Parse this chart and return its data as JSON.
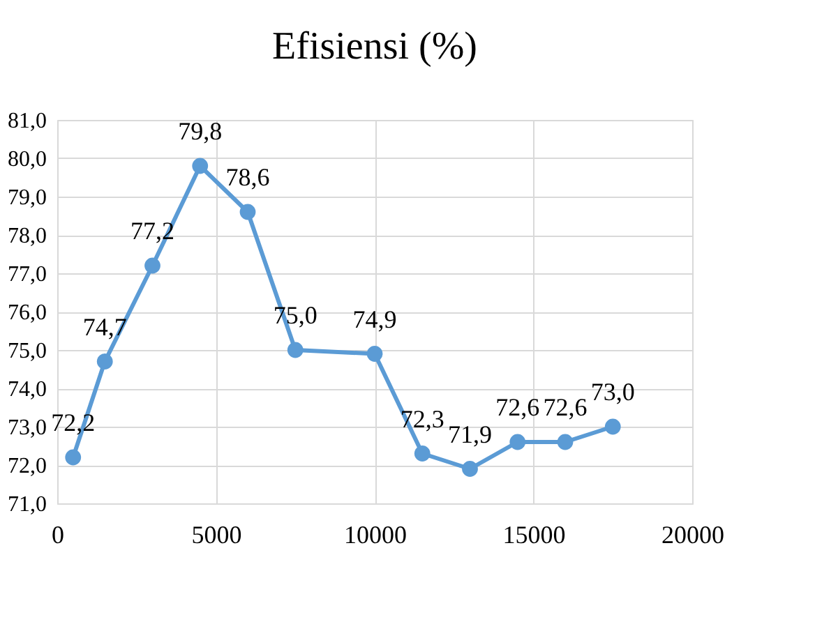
{
  "chart_data": {
    "type": "line",
    "title": "Efisiensi (%)",
    "x": [
      500,
      1500,
      3000,
      4500,
      6000,
      7500,
      10000,
      11500,
      13000,
      14500,
      16000,
      17500
    ],
    "series": [
      {
        "color": "#5b9bd5",
        "values": [
          72.2,
          74.7,
          77.2,
          79.8,
          78.6,
          75.0,
          74.9,
          72.3,
          71.9,
          72.6,
          72.6,
          73.0
        ],
        "value_labels": [
          "72,2",
          "74,7",
          "77,2",
          "79,8",
          "78,6",
          "75,0",
          "74,9",
          "72,3",
          "71,9",
          "72,6",
          "72,6",
          "73,0"
        ]
      }
    ],
    "xlim": [
      0,
      20000
    ],
    "xticks": [
      0,
      5000,
      10000,
      15000,
      20000
    ],
    "ylim": [
      71,
      81
    ],
    "yticks": [
      {
        "value": 71,
        "label": "71,0"
      },
      {
        "value": 72,
        "label": "72,0"
      },
      {
        "value": 73,
        "label": "73,0"
      },
      {
        "value": 74,
        "label": "74,0"
      },
      {
        "value": 75,
        "label": "75,0"
      },
      {
        "value": 76,
        "label": "76,0"
      },
      {
        "value": 77,
        "label": "77,0"
      },
      {
        "value": 78,
        "label": "78,0"
      },
      {
        "value": 79,
        "label": "79,0"
      },
      {
        "value": 80,
        "label": "80,0"
      },
      {
        "value": 81,
        "label": "81,0"
      }
    ],
    "grid": true,
    "marker": "circle",
    "line_style": "solid"
  }
}
